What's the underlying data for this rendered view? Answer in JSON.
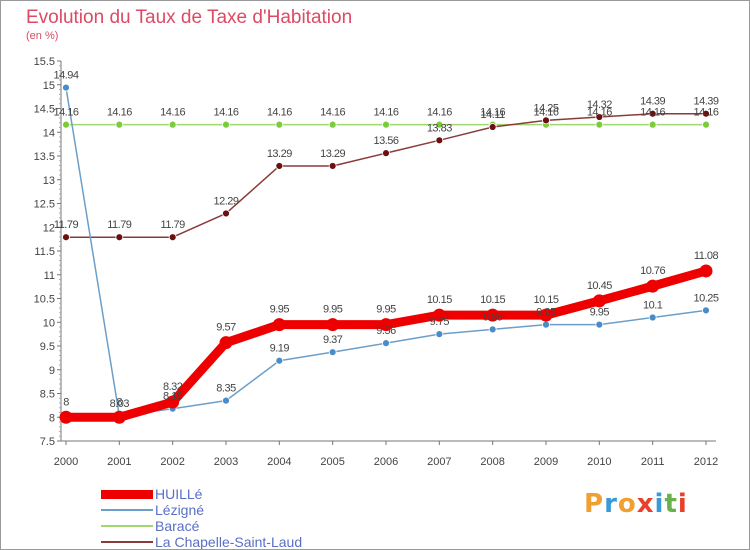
{
  "header": {
    "title": "Evolution du Taux de Taxe d'Habitation",
    "subtitle": "(en %)"
  },
  "logo": {
    "text": "Proxiti",
    "colors": [
      "#f0a030",
      "#3a9ad9",
      "#f0a030",
      "#e8402a",
      "#3a9ad9",
      "#6ab04c",
      "#e8402a"
    ]
  },
  "chart_data": {
    "type": "line",
    "x": [
      "2000",
      "2001",
      "2002",
      "2003",
      "2004",
      "2005",
      "2006",
      "2007",
      "2008",
      "2009",
      "2010",
      "2011",
      "2012"
    ],
    "ylim": [
      7.5,
      15.5
    ],
    "yticks": [
      "7.5",
      "8",
      "8.5",
      "9",
      "9.5",
      "10",
      "10.5",
      "11",
      "11.5",
      "12",
      "12.5",
      "13",
      "13.5",
      "14",
      "14.5",
      "15",
      "15.5"
    ],
    "grid": false,
    "legend_position": "bottom-left",
    "series": [
      {
        "name": "HUILLé",
        "color": "#ee0000",
        "marker": "#ee0000",
        "values": [
          8,
          8,
          8.32,
          9.57,
          9.95,
          9.95,
          9.95,
          10.15,
          10.15,
          10.15,
          10.45,
          10.76,
          11.08
        ],
        "labels": [
          "8",
          "8",
          "8.32",
          "9.57",
          "9.95",
          "9.95",
          "9.95",
          "10.15",
          "10.15",
          "10.15",
          "10.45",
          "10.76",
          "11.08"
        ]
      },
      {
        "name": "Lézigné",
        "color": "#6b9fc9",
        "marker": "#4a8cc8",
        "values": [
          14.94,
          8.03,
          8.18,
          8.35,
          9.19,
          9.37,
          9.56,
          9.75,
          9.85,
          9.95,
          9.95,
          10.1,
          10.25
        ],
        "labels": [
          "14.94",
          "8.03",
          "8.18",
          "8.35",
          "9.19",
          "9.37",
          "9.56",
          "9.75",
          "9.85",
          "9.95",
          "9.95",
          "10.1",
          "10.25"
        ]
      },
      {
        "name": "Baracé",
        "color": "#9fd86f",
        "marker": "#7ccc3a",
        "values": [
          14.16,
          14.16,
          14.16,
          14.16,
          14.16,
          14.16,
          14.16,
          14.16,
          14.16,
          14.16,
          14.16,
          14.16,
          14.16
        ],
        "labels": [
          "14.16",
          "14.16",
          "14.16",
          "14.16",
          "14.16",
          "14.16",
          "14.16",
          "14.16",
          "14.16",
          "14.16",
          "14.16",
          "14.16",
          "14.16"
        ]
      },
      {
        "name": "La Chapelle-Saint-Laud",
        "color": "#8b3a3a",
        "marker": "#6a1010",
        "values": [
          11.79,
          11.79,
          11.79,
          12.29,
          13.29,
          13.29,
          13.56,
          13.83,
          14.11,
          14.25,
          14.32,
          14.39,
          14.39
        ],
        "labels": [
          "11.79",
          "11.79",
          "11.79",
          "12.29",
          "13.29",
          "13.29",
          "13.56",
          "13.83",
          "14.11",
          "14.25",
          "14.32",
          "14.39",
          "14.39"
        ]
      }
    ]
  }
}
